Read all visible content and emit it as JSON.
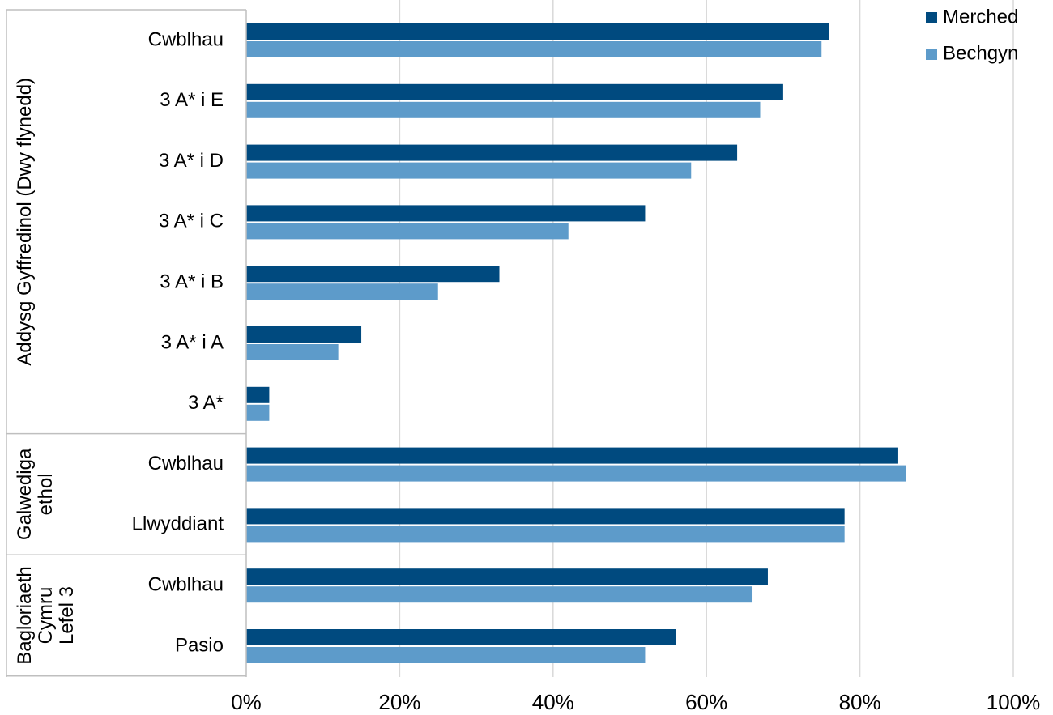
{
  "chart_data": {
    "type": "bar",
    "orientation": "horizontal",
    "grid": true,
    "legend_position": "top-right",
    "xlim": [
      0,
      100
    ],
    "x_ticks": [
      "0%",
      "20%",
      "40%",
      "60%",
      "80%",
      "100%"
    ],
    "categories": [
      "Cwblhau",
      "3 A* i E",
      "3 A* i D",
      "3 A* i C",
      "3 A* i B",
      "3 A* i A",
      "3 A*",
      "Cwblhau",
      "Llwyddiant",
      "Cwblhau",
      "Pasio"
    ],
    "groups": [
      {
        "label_lines": [
          "Addysg Gyffredinol (Dwy flynedd)"
        ],
        "category_count": 7
      },
      {
        "label_lines": [
          "Galwediga",
          "ethol"
        ],
        "category_count": 2
      },
      {
        "label_lines": [
          "Bagloriaeth",
          "Cymru",
          "Lefel 3"
        ],
        "category_count": 2
      }
    ],
    "series": [
      {
        "name": "Merched",
        "color": "#004a7f",
        "values": [
          76,
          70,
          64,
          52,
          33,
          15,
          3,
          85,
          78,
          68,
          56
        ]
      },
      {
        "name": "Bechgyn",
        "color": "#5d9bca",
        "values": [
          75,
          67,
          58,
          42,
          25,
          12,
          3,
          86,
          78,
          66,
          52
        ]
      }
    ]
  }
}
